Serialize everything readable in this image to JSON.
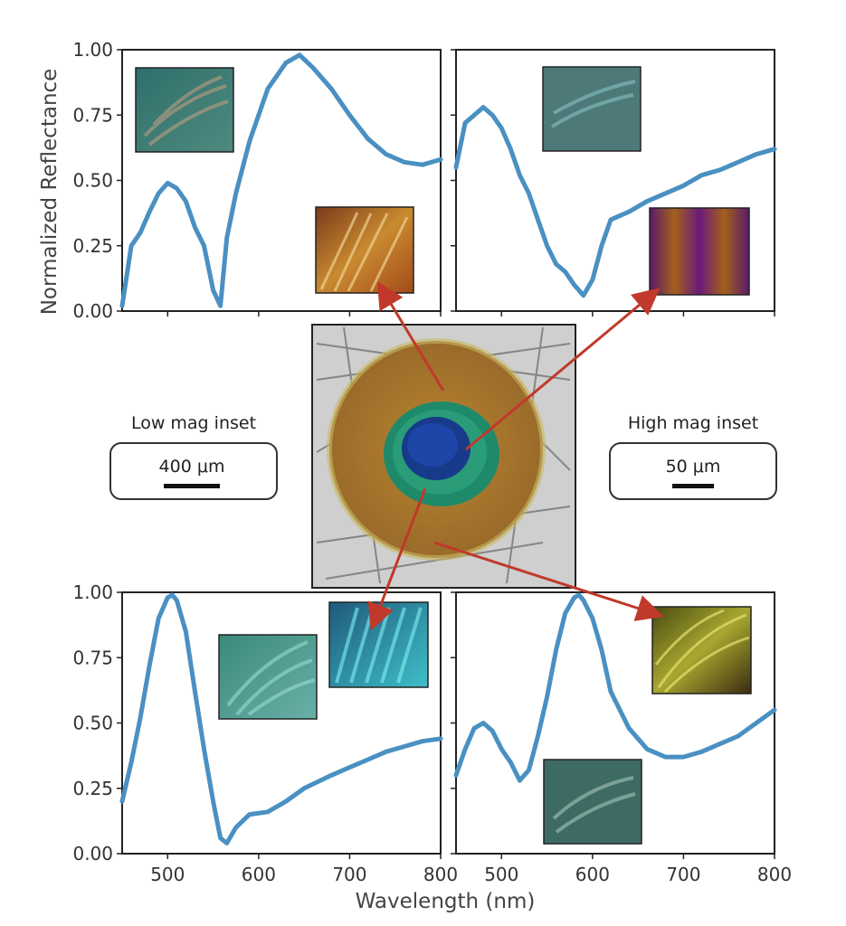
{
  "figure": {
    "y_axis_title": "Normalized Reflectance",
    "x_axis_title": "Wavelength (nm)",
    "low_mag": {
      "title": "Low mag inset",
      "scale": "400 μm"
    },
    "high_mag": {
      "title": "High mag inset",
      "scale": "50 μm"
    },
    "center_photo": "peacock-feather-eyespot-photo",
    "colors": {
      "line": "#4a90c2",
      "arrow": "#c0392b",
      "frame": "#222222"
    }
  },
  "chart_data": [
    {
      "type": "line",
      "panel": "top-left",
      "xlim": [
        450,
        800
      ],
      "ylim": [
        0,
        1
      ],
      "yticks": [
        0.0,
        0.25,
        0.5,
        0.75,
        1.0
      ],
      "ytick_labels": [
        "0.00",
        "0.25",
        "0.50",
        "0.75",
        "1.00"
      ],
      "xticks": [
        500,
        600,
        700,
        800
      ],
      "xtick_labels": [],
      "x": [
        450,
        460,
        470,
        480,
        490,
        500,
        510,
        520,
        530,
        540,
        550,
        558,
        565,
        575,
        590,
        610,
        630,
        645,
        660,
        680,
        700,
        720,
        740,
        760,
        780,
        800
      ],
      "y": [
        0.02,
        0.25,
        0.3,
        0.38,
        0.45,
        0.49,
        0.47,
        0.42,
        0.32,
        0.25,
        0.08,
        0.02,
        0.28,
        0.45,
        0.65,
        0.85,
        0.95,
        0.98,
        0.93,
        0.85,
        0.75,
        0.66,
        0.6,
        0.57,
        0.56,
        0.58
      ]
    },
    {
      "type": "line",
      "panel": "top-right",
      "xlim": [
        450,
        800
      ],
      "ylim": [
        0,
        1
      ],
      "yticks": [
        0.0,
        0.25,
        0.5,
        0.75,
        1.0
      ],
      "ytick_labels": [],
      "xticks": [
        500,
        600,
        700,
        800
      ],
      "xtick_labels": [],
      "x": [
        450,
        460,
        470,
        480,
        490,
        500,
        510,
        520,
        530,
        540,
        550,
        560,
        570,
        580,
        590,
        600,
        610,
        620,
        640,
        660,
        680,
        700,
        720,
        740,
        760,
        780,
        800
      ],
      "y": [
        0.55,
        0.72,
        0.75,
        0.78,
        0.75,
        0.7,
        0.62,
        0.52,
        0.45,
        0.35,
        0.25,
        0.18,
        0.15,
        0.1,
        0.06,
        0.12,
        0.25,
        0.35,
        0.38,
        0.42,
        0.45,
        0.48,
        0.52,
        0.54,
        0.57,
        0.6,
        0.62
      ]
    },
    {
      "type": "line",
      "panel": "bottom-left",
      "xlim": [
        450,
        800
      ],
      "ylim": [
        0,
        1
      ],
      "yticks": [
        0.0,
        0.25,
        0.5,
        0.75,
        1.0
      ],
      "ytick_labels": [
        "0.00",
        "0.25",
        "0.50",
        "0.75",
        "1.00"
      ],
      "xticks": [
        500,
        600,
        700,
        800
      ],
      "xtick_labels": [
        "500",
        "600",
        "700",
        "800"
      ],
      "x": [
        450,
        460,
        470,
        480,
        490,
        500,
        505,
        510,
        520,
        530,
        540,
        550,
        558,
        565,
        575,
        590,
        610,
        630,
        650,
        680,
        700,
        720,
        740,
        760,
        780,
        800
      ],
      "y": [
        0.2,
        0.35,
        0.52,
        0.72,
        0.9,
        0.98,
        0.99,
        0.97,
        0.85,
        0.62,
        0.4,
        0.2,
        0.06,
        0.04,
        0.1,
        0.15,
        0.16,
        0.2,
        0.25,
        0.3,
        0.33,
        0.36,
        0.39,
        0.41,
        0.43,
        0.44
      ]
    },
    {
      "type": "line",
      "panel": "bottom-right",
      "xlim": [
        450,
        800
      ],
      "ylim": [
        0,
        1
      ],
      "yticks": [
        0.0,
        0.25,
        0.5,
        0.75,
        1.0
      ],
      "ytick_labels": [],
      "xticks": [
        500,
        600,
        700,
        800
      ],
      "xtick_labels": [
        "500",
        "600",
        "700",
        "800"
      ],
      "x": [
        450,
        460,
        470,
        480,
        490,
        500,
        510,
        520,
        530,
        540,
        550,
        560,
        570,
        580,
        585,
        590,
        600,
        610,
        620,
        640,
        660,
        680,
        700,
        720,
        740,
        760,
        780,
        800
      ],
      "y": [
        0.3,
        0.4,
        0.48,
        0.5,
        0.47,
        0.4,
        0.35,
        0.28,
        0.32,
        0.45,
        0.6,
        0.78,
        0.92,
        0.98,
        0.99,
        0.97,
        0.9,
        0.78,
        0.62,
        0.48,
        0.4,
        0.37,
        0.37,
        0.39,
        0.42,
        0.45,
        0.5,
        0.55
      ]
    }
  ]
}
